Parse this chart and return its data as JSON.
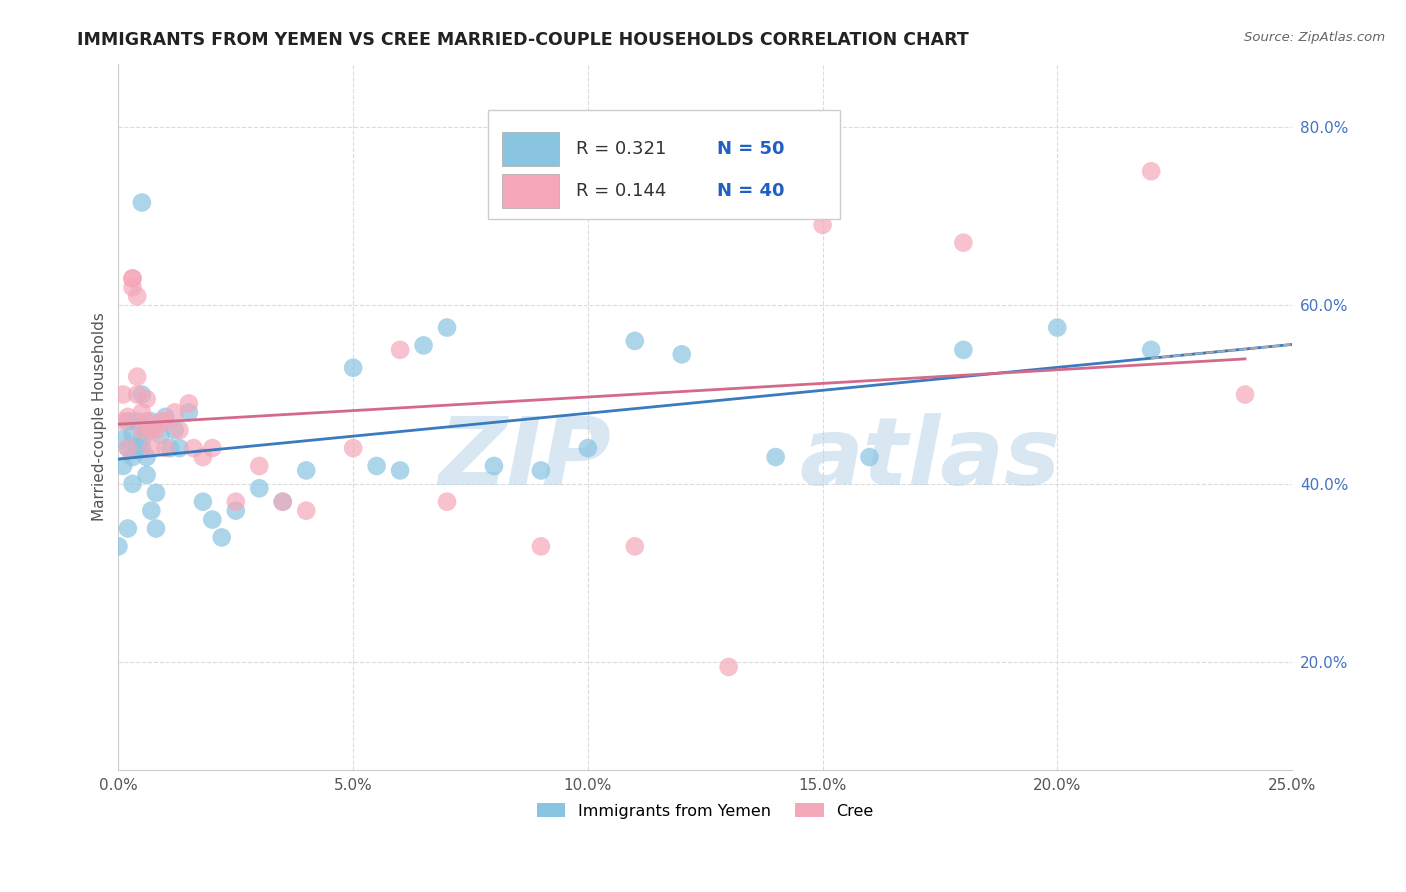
{
  "title": "IMMIGRANTS FROM YEMEN VS CREE MARRIED-COUPLE HOUSEHOLDS CORRELATION CHART",
  "source": "Source: ZipAtlas.com",
  "ylabel": "Married-couple Households",
  "xlim": [
    0.0,
    0.25
  ],
  "ylim": [
    0.08,
    0.87
  ],
  "x_ticks": [
    0.0,
    0.05,
    0.1,
    0.15,
    0.2,
    0.25
  ],
  "y_ticks": [
    0.2,
    0.4,
    0.6,
    0.8
  ],
  "y_tick_labels": [
    "20.0%",
    "40.0%",
    "60.0%",
    "80.0%"
  ],
  "x_tick_labels": [
    "0.0%",
    "5.0%",
    "10.0%",
    "15.0%",
    "20.0%",
    "25.0%"
  ],
  "blue_color": "#89c4e1",
  "pink_color": "#f4a7b9",
  "blue_line_color": "#3a7abf",
  "pink_line_color": "#d46a8a",
  "background_color": "#ffffff",
  "grid_color": "#d8d8d8",
  "blue_x": [
    0.0,
    0.001,
    0.001,
    0.002,
    0.002,
    0.002,
    0.003,
    0.003,
    0.003,
    0.004,
    0.004,
    0.005,
    0.005,
    0.005,
    0.006,
    0.006,
    0.006,
    0.007,
    0.007,
    0.008,
    0.008,
    0.009,
    0.01,
    0.011,
    0.012,
    0.013,
    0.015,
    0.018,
    0.02,
    0.022,
    0.025,
    0.03,
    0.035,
    0.04,
    0.05,
    0.055,
    0.06,
    0.065,
    0.07,
    0.08,
    0.09,
    0.1,
    0.11,
    0.12,
    0.14,
    0.16,
    0.18,
    0.2,
    0.22,
    0.005
  ],
  "blue_y": [
    0.33,
    0.45,
    0.42,
    0.35,
    0.44,
    0.47,
    0.43,
    0.4,
    0.455,
    0.44,
    0.47,
    0.5,
    0.45,
    0.44,
    0.43,
    0.41,
    0.46,
    0.47,
    0.37,
    0.39,
    0.35,
    0.455,
    0.475,
    0.44,
    0.46,
    0.44,
    0.48,
    0.38,
    0.36,
    0.34,
    0.37,
    0.395,
    0.38,
    0.415,
    0.53,
    0.42,
    0.415,
    0.555,
    0.575,
    0.42,
    0.415,
    0.44,
    0.56,
    0.545,
    0.43,
    0.43,
    0.55,
    0.575,
    0.55,
    0.715
  ],
  "pink_x": [
    0.001,
    0.001,
    0.002,
    0.002,
    0.003,
    0.003,
    0.004,
    0.004,
    0.005,
    0.005,
    0.006,
    0.006,
    0.007,
    0.008,
    0.009,
    0.01,
    0.012,
    0.013,
    0.015,
    0.016,
    0.018,
    0.02,
    0.025,
    0.03,
    0.035,
    0.04,
    0.05,
    0.06,
    0.07,
    0.09,
    0.11,
    0.13,
    0.15,
    0.18,
    0.22,
    0.24,
    0.004,
    0.003,
    0.007,
    0.01
  ],
  "pink_y": [
    0.47,
    0.5,
    0.44,
    0.475,
    0.62,
    0.63,
    0.5,
    0.52,
    0.46,
    0.48,
    0.47,
    0.495,
    0.46,
    0.46,
    0.47,
    0.47,
    0.48,
    0.46,
    0.49,
    0.44,
    0.43,
    0.44,
    0.38,
    0.42,
    0.38,
    0.37,
    0.44,
    0.55,
    0.38,
    0.33,
    0.33,
    0.195,
    0.69,
    0.67,
    0.75,
    0.5,
    0.61,
    0.63,
    0.44,
    0.44
  ]
}
